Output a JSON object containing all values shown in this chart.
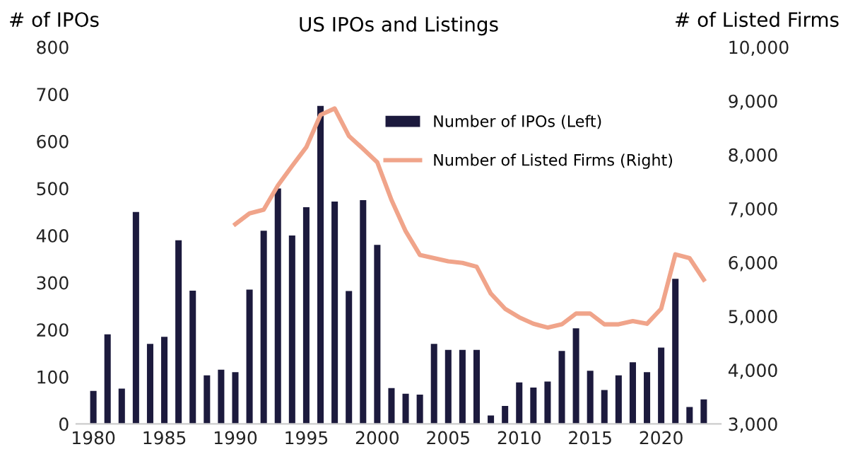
{
  "chart_data": {
    "type": "bar",
    "title": "US IPOs and Listings",
    "ylabel": "# of IPOs",
    "y2label": "# of Listed Firms",
    "xlim": [
      1978.8,
      2024.2
    ],
    "xticks": [
      1980,
      1985,
      1990,
      1995,
      2000,
      2005,
      2010,
      2015,
      2020
    ],
    "ylim": [
      0,
      800
    ],
    "yticks": [
      0,
      100,
      200,
      300,
      400,
      500,
      600,
      700,
      800
    ],
    "y2lim": [
      3000,
      10000
    ],
    "y2ticks": [
      {
        "value": 3000,
        "label": "3,000"
      },
      {
        "value": 4000,
        "label": "4,000"
      },
      {
        "value": 5000,
        "label": "5,000"
      },
      {
        "value": 6000,
        "label": "6,000"
      },
      {
        "value": 7000,
        "label": "7,000"
      },
      {
        "value": 8000,
        "label": "8,000"
      },
      {
        "value": 9000,
        "label": "9,000"
      },
      {
        "value": 10000,
        "label": "10,000"
      }
    ],
    "grid": false,
    "legend": "top right",
    "series": [
      {
        "name": "Number of IPOs (Left)",
        "color": "#1c1a3d",
        "x": [
          1980,
          1981,
          1982,
          1983,
          1984,
          1985,
          1986,
          1987,
          1988,
          1989,
          1990,
          1991,
          1992,
          1993,
          1994,
          1995,
          1996,
          1997,
          1998,
          1999,
          2000,
          2001,
          2002,
          2003,
          2004,
          2005,
          2006,
          2007,
          2008,
          2009,
          2010,
          2011,
          2012,
          2013,
          2014,
          2015,
          2016,
          2017,
          2018,
          2019,
          2020,
          2021,
          2022,
          2023
        ],
        "values": [
          70,
          190,
          75,
          450,
          170,
          185,
          390,
          283,
          103,
          115,
          110,
          285,
          410,
          500,
          400,
          460,
          675,
          472,
          282,
          475,
          380,
          76,
          64,
          62,
          170,
          157,
          157,
          157,
          18,
          38,
          88,
          77,
          90,
          155,
          203,
          113,
          72,
          103,
          131,
          110,
          162,
          308,
          36,
          52
        ]
      },
      {
        "name": "Number of Listed Firms (Right)",
        "type": "line",
        "axis": "y2",
        "color": "#f0a48a",
        "x": [
          1990,
          1991,
          1992,
          1993,
          1994,
          1995,
          1996,
          1997,
          1998,
          1999,
          2000,
          2001,
          2002,
          2003,
          2004,
          2005,
          2006,
          2007,
          2008,
          2009,
          2010,
          2011,
          2012,
          2013,
          2014,
          2015,
          2016,
          2017,
          2018,
          2019,
          2020,
          2021,
          2022,
          2023
        ],
        "values": [
          6710,
          6910,
          6980,
          7430,
          7790,
          8140,
          8740,
          8860,
          8350,
          8110,
          7860,
          7160,
          6580,
          6140,
          6080,
          6020,
          5990,
          5920,
          5420,
          5140,
          4980,
          4860,
          4790,
          4850,
          5050,
          5050,
          4850,
          4850,
          4910,
          4860,
          5140,
          6150,
          6080,
          5680
        ]
      }
    ]
  }
}
